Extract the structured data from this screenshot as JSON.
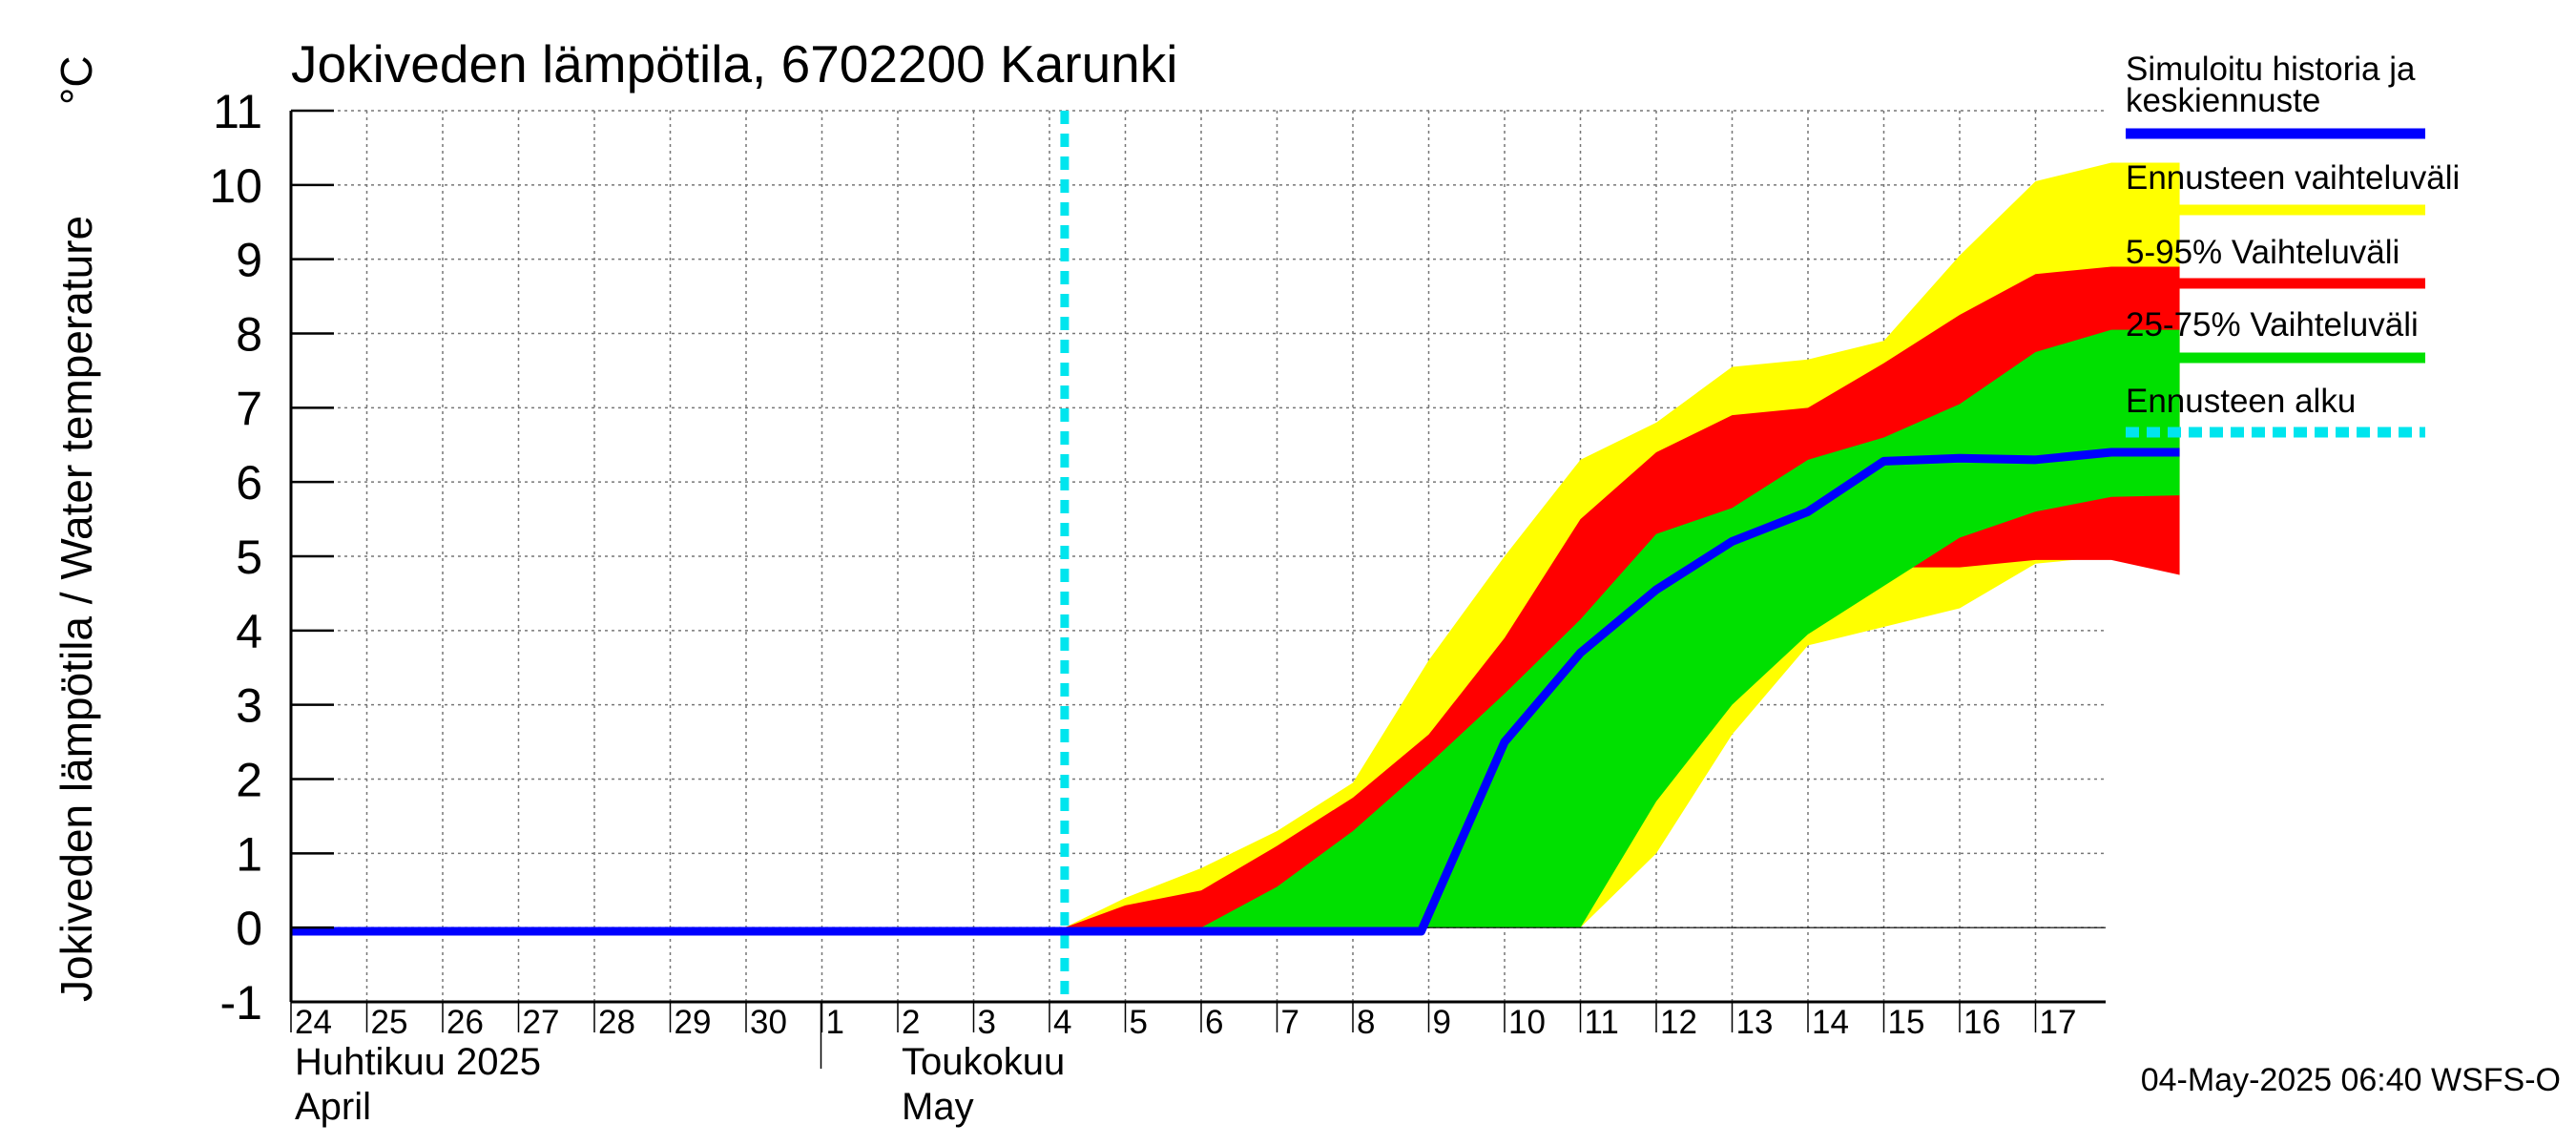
{
  "chart_data": {
    "type": "area",
    "title": "Jokiveden lämpötila, 6702200 Karunki",
    "ylabel": "Jokiveden lämpötila / Water temperature",
    "yunit": "°C",
    "ylim": [
      -1,
      11
    ],
    "yticks": [
      -1,
      0,
      1,
      2,
      3,
      4,
      5,
      6,
      7,
      8,
      9,
      10,
      11
    ],
    "grid": true,
    "x_domain_days": [
      0,
      24.9
    ],
    "x_tick_labels": [
      {
        "day": 0,
        "label": "24"
      },
      {
        "day": 1,
        "label": "25"
      },
      {
        "day": 2,
        "label": "26"
      },
      {
        "day": 3,
        "label": "27"
      },
      {
        "day": 4,
        "label": "28"
      },
      {
        "day": 5,
        "label": "29"
      },
      {
        "day": 6,
        "label": "30"
      },
      {
        "day": 7,
        "label": "1"
      },
      {
        "day": 8,
        "label": "2"
      },
      {
        "day": 9,
        "label": "3"
      },
      {
        "day": 10,
        "label": "4"
      },
      {
        "day": 11,
        "label": "5"
      },
      {
        "day": 12,
        "label": "6"
      },
      {
        "day": 13,
        "label": "7"
      },
      {
        "day": 14,
        "label": "8"
      },
      {
        "day": 15,
        "label": "9"
      },
      {
        "day": 16,
        "label": "10"
      },
      {
        "day": 17,
        "label": "11"
      },
      {
        "day": 18,
        "label": "12"
      },
      {
        "day": 19,
        "label": "13"
      },
      {
        "day": 20,
        "label": "14"
      },
      {
        "day": 21,
        "label": "15"
      },
      {
        "day": 22,
        "label": "16"
      },
      {
        "day": 23,
        "label": "17"
      }
    ],
    "month_labels": [
      {
        "day": 0,
        "line1": "Huhtikuu  2025",
        "line2": "April"
      },
      {
        "day": 8,
        "line1": "Toukokuu",
        "line2": "May"
      }
    ],
    "month_divider_day": 7,
    "forecast_start_day": 10.2,
    "series": [
      {
        "name": "Ennusteen vaihteluväli",
        "color": "#ffff00",
        "x": [
          10.2,
          11,
          12,
          13,
          14,
          15,
          16,
          17,
          18,
          19,
          20,
          21,
          22,
          23,
          24,
          24.9
        ],
        "lower": [
          0,
          0,
          0,
          0,
          0,
          0,
          0,
          0,
          1.0,
          2.6,
          3.8,
          4.05,
          4.3,
          4.9,
          5.0,
          4.75
        ],
        "upper": [
          0,
          0.4,
          0.8,
          1.3,
          1.95,
          3.6,
          5.0,
          6.3,
          6.8,
          7.55,
          7.65,
          7.9,
          9.05,
          10.05,
          10.3,
          10.3
        ]
      },
      {
        "name": "5-95% Vaihteluväli",
        "color": "#ff0000",
        "x": [
          10.2,
          11,
          12,
          13,
          14,
          15,
          16,
          17,
          18,
          19,
          20,
          21,
          22,
          23,
          24,
          24.9
        ],
        "lower": [
          0,
          0,
          0,
          0,
          0,
          0,
          0,
          1.6,
          2.7,
          3.8,
          4.2,
          4.85,
          4.85,
          4.95,
          4.95,
          4.75
        ],
        "upper": [
          0,
          0.3,
          0.5,
          1.1,
          1.75,
          2.6,
          3.9,
          5.5,
          6.4,
          6.9,
          7.0,
          7.6,
          8.25,
          8.8,
          8.9,
          8.9
        ]
      },
      {
        "name": "25-75% Vaihteluväli",
        "color": "#00e000",
        "x": [
          10.2,
          11,
          12,
          13,
          14,
          15,
          16,
          17,
          18,
          19,
          20,
          21,
          22,
          23,
          24,
          24.9
        ],
        "lower": [
          0,
          0,
          0,
          0,
          0,
          0,
          0,
          0,
          1.7,
          3.0,
          3.95,
          4.6,
          5.25,
          5.6,
          5.8,
          5.82
        ],
        "upper": [
          0,
          0,
          0,
          0.55,
          1.3,
          2.2,
          3.15,
          4.15,
          5.3,
          5.65,
          6.3,
          6.6,
          7.05,
          7.75,
          8.05,
          8.05
        ]
      },
      {
        "name": "Simuloitu historia ja keskiennuste",
        "color": "#0000ff",
        "x": [
          0,
          14.9,
          16,
          17,
          18,
          19,
          20,
          21,
          22,
          23,
          24,
          24.9
        ],
        "y": [
          -0.05,
          -0.05,
          2.5,
          3.7,
          4.55,
          5.2,
          5.6,
          6.28,
          6.32,
          6.3,
          6.4,
          6.4
        ]
      }
    ],
    "legend_position": "right",
    "legend": [
      {
        "label": "Simuloitu historia ja keskiennuste",
        "color": "#0000ff",
        "style": "line"
      },
      {
        "label": "Ennusteen vaihteluväli",
        "color": "#ffff00",
        "style": "line"
      },
      {
        "label": "5-95% Vaihteluväli",
        "color": "#ff0000",
        "style": "line"
      },
      {
        "label": "25-75% Vaihteluväli",
        "color": "#00e000",
        "style": "line"
      },
      {
        "label": "Ennusteen alku",
        "color": "#00e5ee",
        "style": "dashed"
      }
    ],
    "footer": "04-May-2025 06:40 WSFS-O"
  }
}
